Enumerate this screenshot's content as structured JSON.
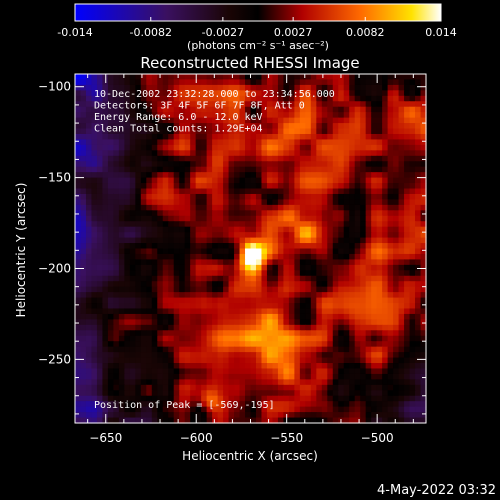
{
  "colorbar": {
    "tick_labels": [
      "-0.014",
      "-0.0082",
      "-0.0027",
      "0.0027",
      "0.0082",
      "0.014"
    ],
    "units_label": "(photons cm⁻² s⁻¹ asec⁻²)",
    "range": [
      -0.014,
      0.014
    ]
  },
  "chart_data": {
    "type": "heatmap",
    "title": "Reconstructed RHESSI Image",
    "xlabel": "Heliocentric X (arcsec)",
    "ylabel": "Heliocentric Y (arcsec)",
    "xlim": [
      -667,
      -473
    ],
    "ylim": [
      -285,
      -93
    ],
    "x_ticks": [
      -650,
      -600,
      -550,
      -500
    ],
    "y_ticks": [
      -100,
      -150,
      -200,
      -250
    ],
    "x_tick_labels": [
      "−650",
      "−600",
      "−550",
      "−500"
    ],
    "y_tick_labels": [
      "−100",
      "−150",
      "−200",
      "−250"
    ],
    "peak_position": [
      -569,
      -195
    ],
    "colormap": "heat (blue-purple-red-yellow-white)",
    "info_lines": [
      "10-Dec-2002 23:32:28.000 to 23:34:56.000",
      "Detectors: 3F 4F 5F 6F 7F 8F, Att 0",
      "Energy Range: 6.0 - 12.0 keV",
      "Clean     Total counts: 1.29E+04"
    ],
    "peak_label": "Position of Peak = [-569,-195]"
  },
  "footer": {
    "timestamp": "4-May-2022 03:32"
  }
}
